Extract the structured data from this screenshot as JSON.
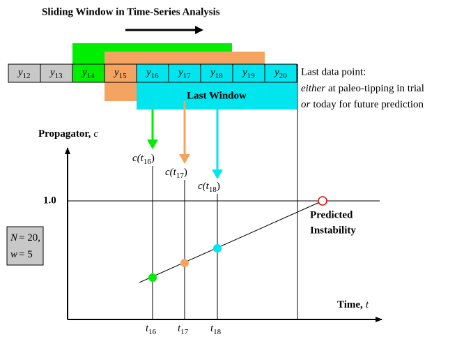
{
  "title": "Sliding Window in Time-Series Analysis",
  "cells": [
    {
      "var": "y",
      "sub": "12"
    },
    {
      "var": "y",
      "sub": "13"
    },
    {
      "var": "y",
      "sub": "14"
    },
    {
      "var": "y",
      "sub": "15"
    },
    {
      "var": "y",
      "sub": "16"
    },
    {
      "var": "y",
      "sub": "17"
    },
    {
      "var": "y",
      "sub": "18"
    },
    {
      "var": "y",
      "sub": "19"
    },
    {
      "var": "y",
      "sub": "20"
    }
  ],
  "last_window": "Last Window",
  "note": {
    "line1": "Last data point:",
    "line2": {
      "emph": "either",
      "rest": "at paleo-tipping in trial"
    },
    "line3": {
      "emph": "or",
      "rest": "today for future prediction"
    }
  },
  "y_axis": {
    "label": "Propagator,",
    "symbol": "c"
  },
  "x_axis": {
    "label": "Time,",
    "symbol": "t"
  },
  "level": "1.0",
  "propagators": [
    {
      "pre": "c(",
      "var": "t",
      "sub": "16",
      "post": ")"
    },
    {
      "pre": "c(",
      "var": "t",
      "sub": "17",
      "post": ")"
    },
    {
      "pre": "c(",
      "var": "t",
      "sub": "18",
      "post": ")"
    }
  ],
  "ticks": [
    {
      "var": "t",
      "sub": "16"
    },
    {
      "var": "t",
      "sub": "17"
    },
    {
      "var": "t",
      "sub": "18"
    }
  ],
  "predicted": [
    "Predicted",
    "Instability"
  ],
  "params": [
    {
      "var": "N",
      "rest": "= 20,"
    },
    {
      "var": "w",
      "rest": "= 5"
    }
  ]
}
